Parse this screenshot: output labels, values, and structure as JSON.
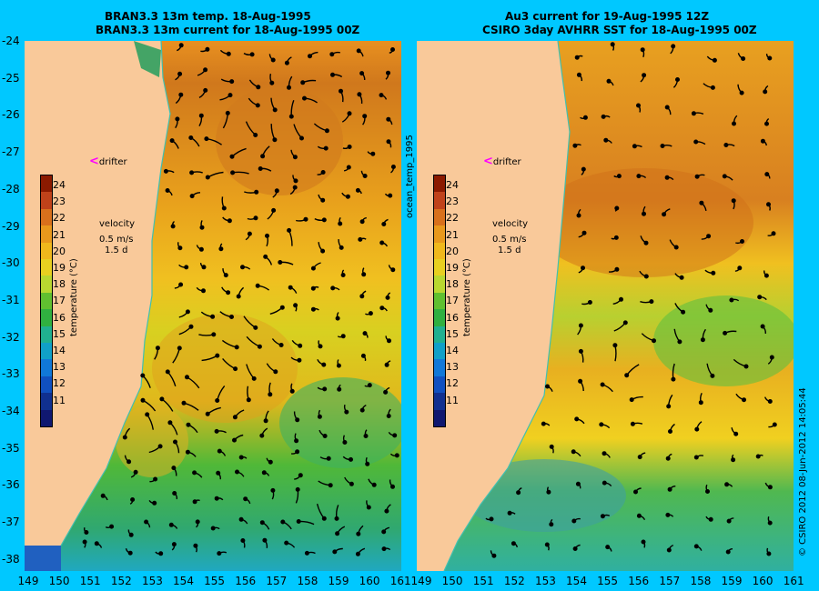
{
  "titles": {
    "left_line1": "BRAN3.3 13m temp. 18-Aug-1995",
    "left_line2": "BRAN3.3 13m current for 18-Aug-1995 00Z",
    "right_line1": "Au3 current for 19-Aug-1995 12Z",
    "right_line2": "CSIRO 3day AVHRR SST for 18-Aug-1995 00Z"
  },
  "lat_labels": [
    "-24",
    "-25",
    "-26",
    "-27",
    "-28",
    "-29",
    "-30",
    "-31",
    "-32",
    "-33",
    "-34",
    "-35",
    "-36",
    "-37",
    "-38"
  ],
  "lon_labels_left": [
    "149",
    "150",
    "151",
    "152",
    "153",
    "154",
    "155",
    "156",
    "157",
    "158",
    "159",
    "160",
    "161"
  ],
  "lon_labels_right": [
    "149",
    "150",
    "151",
    "152",
    "153",
    "154",
    "155",
    "156",
    "157",
    "158",
    "159",
    "160",
    "161"
  ],
  "colorbar": {
    "ticks": [
      "24",
      "23",
      "22",
      "21",
      "20",
      "19",
      "18",
      "17",
      "16",
      "15",
      "14",
      "13",
      "12",
      "11"
    ],
    "label": "temperature (°C)",
    "colors": [
      "#8b1a00",
      "#c0421a",
      "#d8701c",
      "#e8981c",
      "#f0b81c",
      "#e8d020",
      "#b8d830",
      "#60c030",
      "#30b040",
      "#20b090",
      "#10a0c8",
      "#1078d8",
      "#1050c0",
      "#103090",
      "#101870"
    ]
  },
  "velocity_key": {
    "title": "velocity",
    "speed": "0.5 m/s",
    "duration": "1.5 d"
  },
  "drifter_label": "drifter",
  "vertical_label": "ocean_temp_1995",
  "copyright": "© CSIRO 2012  08-Jun-2012 14:05:44",
  "colors": {
    "background": "#00c8ff",
    "land": "#f9c99a",
    "drifter": "#ff00ff",
    "coastline": "#40c0b0"
  }
}
